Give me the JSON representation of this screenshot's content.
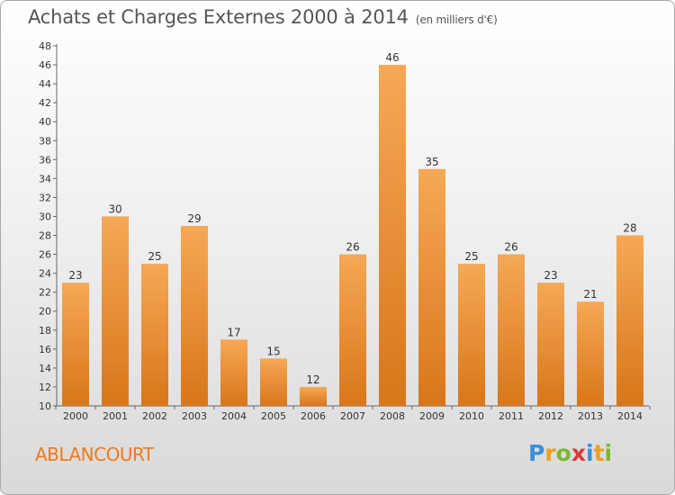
{
  "title": "Achats et Charges Externes 2000 à 2014",
  "unit": "(en milliers d'€)",
  "city": "ABLANCOURT",
  "logo": {
    "letters": [
      "P",
      "r",
      "o",
      "x",
      "i",
      "t",
      "i"
    ],
    "colors": [
      "#3a8fd8",
      "#e8a21a",
      "#7cb82f",
      "#d83a3a",
      "#3a8fd8",
      "#e8a21a",
      "#7cb82f"
    ]
  },
  "colors": {
    "bar_light": "#f6a855",
    "bar_dark": "#d8761a",
    "title": "#555555",
    "city": "#f07a1a"
  },
  "chart_data": {
    "type": "bar",
    "title": "Achats et Charges Externes 2000 à 2014",
    "categories": [
      "2000",
      "2001",
      "2002",
      "2003",
      "2004",
      "2005",
      "2006",
      "2007",
      "2008",
      "2009",
      "2010",
      "2011",
      "2012",
      "2013",
      "2014"
    ],
    "values": [
      23,
      30,
      25,
      29,
      17,
      15,
      12,
      26,
      46,
      35,
      25,
      26,
      23,
      21,
      28
    ],
    "ylim": [
      10,
      48
    ],
    "yticks": [
      10,
      12,
      14,
      16,
      18,
      20,
      22,
      24,
      26,
      28,
      30,
      32,
      34,
      36,
      38,
      40,
      42,
      44,
      46,
      48
    ],
    "grid": false,
    "legend": "none"
  }
}
